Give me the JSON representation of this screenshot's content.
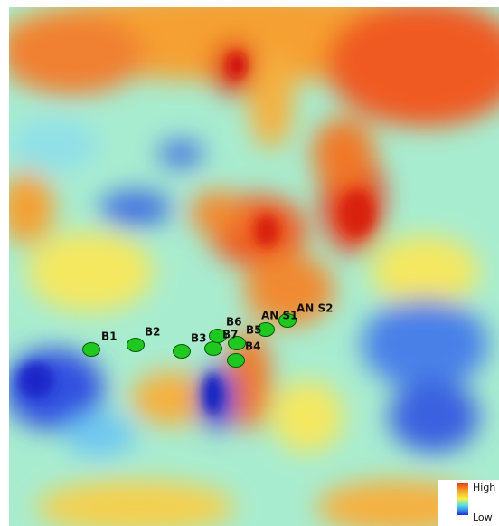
{
  "points": [
    {
      "label": "B1"
    },
    {
      "label": "B2"
    },
    {
      "label": "B3"
    },
    {
      "label": "B7"
    },
    {
      "label": "B6"
    },
    {
      "label": "B5"
    },
    {
      "label": "B4"
    },
    {
      "label": "AN S1"
    },
    {
      "label": "AN S2"
    }
  ],
  "legend": {
    "high": "High",
    "low": "Low"
  }
}
